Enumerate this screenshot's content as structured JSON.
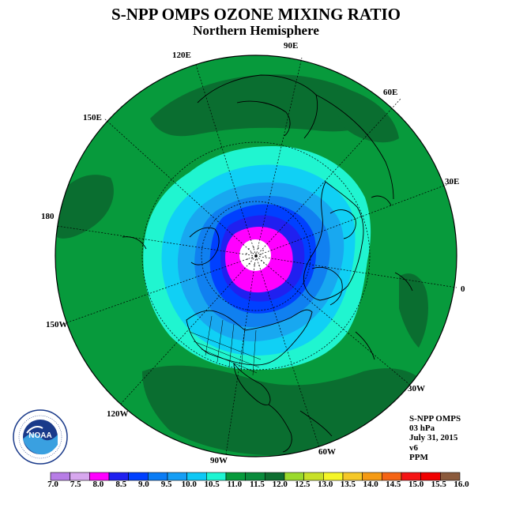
{
  "title": "S-NPP OMPS OZONE MIXING RATIO",
  "subtitle": "Northern Hemisphere",
  "longitude_labels": [
    "0",
    "30E",
    "60E",
    "90E",
    "120E",
    "150E",
    "180",
    "150W",
    "120W",
    "90W",
    "60W",
    "30W"
  ],
  "info": {
    "instrument": "S-NPP OMPS",
    "pressure": "03 hPa",
    "date": "July 31, 2015",
    "version": "v6",
    "units": "PPM"
  },
  "logo": {
    "icon": "noaa-logo-icon",
    "text": "NOAA"
  },
  "colorbar": {
    "labels": [
      "7.0",
      "7.5",
      "8.0",
      "8.5",
      "9.0",
      "9.5",
      "10.0",
      "10.5",
      "11.0",
      "11.5",
      "12.0",
      "12.5",
      "13.0",
      "13.5",
      "14.0",
      "14.5",
      "15.0",
      "15.5",
      "16.0"
    ],
    "colors": [
      "#b77de6",
      "#d7a7ee",
      "#ff00ff",
      "#2020f0",
      "#0040ff",
      "#0a7cf5",
      "#159ef5",
      "#0ec8f5",
      "#1ef5d2",
      "#079a3c",
      "#0a8b3c",
      "#0e6e30",
      "#9ada2c",
      "#c8e028",
      "#f5f528",
      "#f5c828",
      "#f59a14",
      "#f56414",
      "#f51414",
      "#f00000",
      "#8b5a3c"
    ]
  },
  "chart_data": {
    "type": "heatmap",
    "title": "S-NPP OMPS OZONE MIXING RATIO",
    "subtitle": "Northern Hemisphere",
    "projection": "north polar stereographic",
    "units": "PPM",
    "level": "03 hPa",
    "date": "July 31, 2015",
    "color_scale_bounds": [
      7.0,
      7.5,
      8.0,
      8.5,
      9.0,
      9.5,
      10.0,
      10.5,
      11.0,
      11.5,
      12.0,
      12.5,
      13.0,
      13.5,
      14.0,
      14.5,
      15.0,
      15.5,
      16.0
    ],
    "contour_rings": [
      {
        "level_range": [
          8.0,
          8.5
        ],
        "color": "#ff00ff"
      },
      {
        "level_range": [
          8.5,
          9.0
        ],
        "color": "#2020f0"
      },
      {
        "level_range": [
          9.0,
          9.5
        ],
        "color": "#0040ff"
      },
      {
        "level_range": [
          9.5,
          10.0
        ],
        "color": "#1080f0"
      },
      {
        "level_range": [
          10.0,
          10.5
        ],
        "color": "#18a8f0"
      },
      {
        "level_range": [
          10.5,
          11.0
        ],
        "color": "#10d0f5"
      },
      {
        "level_range": [
          11.0,
          11.5
        ],
        "color": "#20f5d0"
      },
      {
        "level_range": [
          11.5,
          12.0
        ],
        "color": "#089840"
      },
      {
        "level_range": [
          12.0,
          12.5
        ],
        "color": "#0a6e30"
      }
    ]
  }
}
